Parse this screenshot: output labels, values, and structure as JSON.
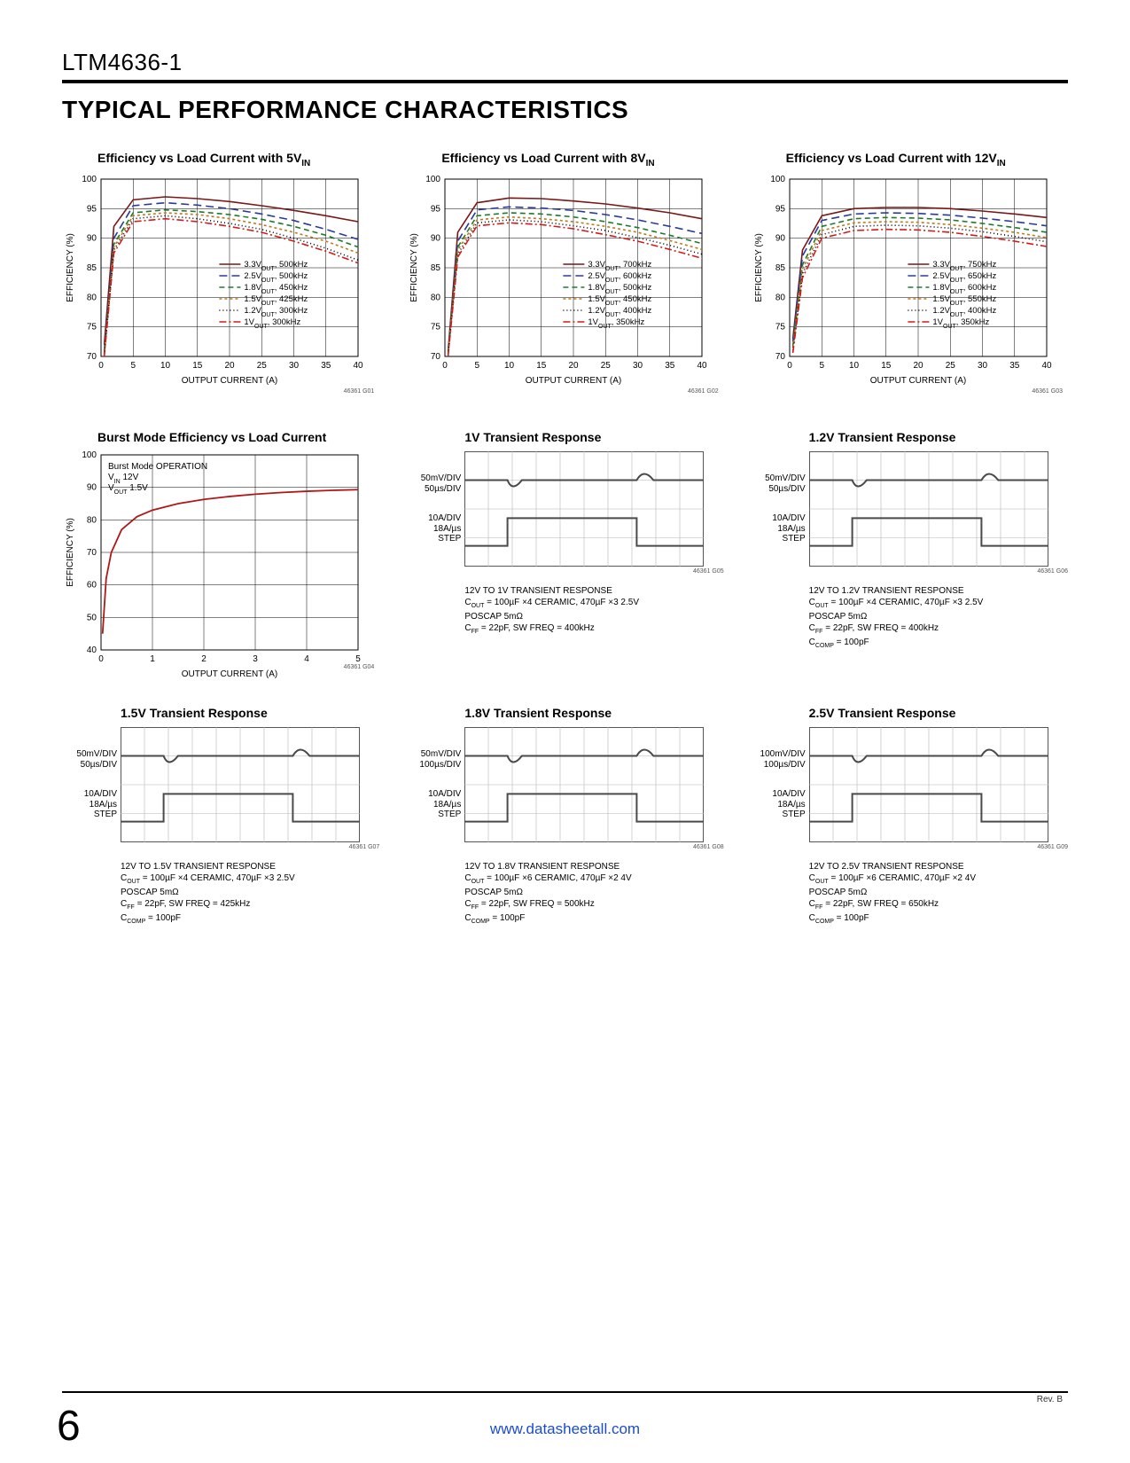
{
  "header": {
    "part_number": "LTM4636-1",
    "section_title": "TYPICAL PERFORMANCE CHARACTERISTICS"
  },
  "footer": {
    "page": "6",
    "rev": "Rev. B",
    "url": "www.datasheetall.com"
  },
  "eff_common": {
    "ylabel": "EFFICIENCY (%)",
    "xlabel": "OUTPUT CURRENT (A)",
    "xlim": [
      0,
      40
    ],
    "xticks": [
      0,
      5,
      10,
      15,
      20,
      25,
      30,
      35,
      40
    ],
    "ylim": [
      70,
      100
    ],
    "yticks": [
      70,
      75,
      80,
      85,
      90,
      95,
      100
    ],
    "grid_color": "#000",
    "colors": {
      "s33": "#7a1717",
      "s25": "#2a3a9a",
      "s18": "#1d7a2e",
      "s15": "#c07a1d",
      "s12": "#000000",
      "s10": "#d31b1b"
    },
    "dash": {
      "s33": "",
      "s25": "9 5",
      "s18": "6 4",
      "s15": "3 3",
      "s12": "1 3",
      "s10": "8 3 2 3"
    }
  },
  "chart1": {
    "title_pre": "Efficiency vs Load Current with 5V",
    "title_sub": "IN",
    "fig": "46361 G01",
    "legend": [
      {
        "k": "s33",
        "t": "3.3V_OUT, 500kHz"
      },
      {
        "k": "s25",
        "t": "2.5V_OUT, 500kHz"
      },
      {
        "k": "s18",
        "t": "1.8V_OUT, 450kHz"
      },
      {
        "k": "s15",
        "t": "1.5V_OUT, 425kHz"
      },
      {
        "k": "s12",
        "t": "1.2V_OUT, 300kHz"
      },
      {
        "k": "s10",
        "t": "1V_OUT, 300kHz"
      }
    ],
    "series": {
      "s33": [
        [
          0.5,
          72
        ],
        [
          2,
          92
        ],
        [
          5,
          96.5
        ],
        [
          10,
          97
        ],
        [
          15,
          96.7
        ],
        [
          20,
          96.2
        ],
        [
          25,
          95.5
        ],
        [
          30,
          94.7
        ],
        [
          35,
          93.8
        ],
        [
          40,
          92.8
        ]
      ],
      "s25": [
        [
          0.5,
          71
        ],
        [
          2,
          90
        ],
        [
          5,
          95.5
        ],
        [
          10,
          96
        ],
        [
          15,
          95.6
        ],
        [
          20,
          95
        ],
        [
          25,
          94.1
        ],
        [
          30,
          93
        ],
        [
          35,
          91.5
        ],
        [
          40,
          89.8
        ]
      ],
      "s18": [
        [
          0.5,
          70.5
        ],
        [
          2,
          89
        ],
        [
          5,
          94.3
        ],
        [
          10,
          94.8
        ],
        [
          15,
          94.5
        ],
        [
          20,
          94
        ],
        [
          25,
          93.2
        ],
        [
          30,
          92
        ],
        [
          35,
          90.5
        ],
        [
          40,
          88.5
        ]
      ],
      "s15": [
        [
          0.5,
          70.3
        ],
        [
          2,
          88.5
        ],
        [
          5,
          93.8
        ],
        [
          10,
          94.3
        ],
        [
          15,
          94
        ],
        [
          20,
          93.3
        ],
        [
          25,
          92.3
        ],
        [
          30,
          91
        ],
        [
          35,
          89.5
        ],
        [
          40,
          87.5
        ]
      ],
      "s12": [
        [
          0.5,
          70.2
        ],
        [
          2,
          88
        ],
        [
          5,
          93.3
        ],
        [
          10,
          93.8
        ],
        [
          15,
          93.3
        ],
        [
          20,
          92.5
        ],
        [
          25,
          91.5
        ],
        [
          30,
          90
        ],
        [
          35,
          88.3
        ],
        [
          40,
          86.3
        ]
      ],
      "s10": [
        [
          0.5,
          70
        ],
        [
          2,
          87.5
        ],
        [
          5,
          92.8
        ],
        [
          10,
          93.3
        ],
        [
          15,
          92.8
        ],
        [
          20,
          92
        ],
        [
          25,
          91
        ],
        [
          30,
          89.5
        ],
        [
          35,
          87.8
        ],
        [
          40,
          85.8
        ]
      ]
    }
  },
  "chart2": {
    "title_pre": "Efficiency vs Load Current with 8V",
    "title_sub": "IN",
    "fig": "46361 G02",
    "legend": [
      {
        "k": "s33",
        "t": "3.3V_OUT, 700kHz"
      },
      {
        "k": "s25",
        "t": "2.5V_OUT, 600kHz"
      },
      {
        "k": "s18",
        "t": "1.8V_OUT, 500kHz"
      },
      {
        "k": "s15",
        "t": "1.5V_OUT, 450kHz"
      },
      {
        "k": "s12",
        "t": "1.2V_OUT, 400kHz"
      },
      {
        "k": "s10",
        "t": "1V_OUT, 350kHz"
      }
    ],
    "series": {
      "s33": [
        [
          0.5,
          71
        ],
        [
          2,
          91
        ],
        [
          5,
          96
        ],
        [
          10,
          96.8
        ],
        [
          15,
          96.7
        ],
        [
          20,
          96.3
        ],
        [
          25,
          95.8
        ],
        [
          30,
          95.1
        ],
        [
          35,
          94.3
        ],
        [
          40,
          93.3
        ]
      ],
      "s25": [
        [
          0.5,
          70.8
        ],
        [
          2,
          89.5
        ],
        [
          5,
          94.8
        ],
        [
          10,
          95.3
        ],
        [
          15,
          95.1
        ],
        [
          20,
          94.7
        ],
        [
          25,
          94
        ],
        [
          30,
          93.1
        ],
        [
          35,
          92
        ],
        [
          40,
          90.8
        ]
      ],
      "s18": [
        [
          0.5,
          70.6
        ],
        [
          2,
          88.5
        ],
        [
          5,
          93.8
        ],
        [
          10,
          94.3
        ],
        [
          15,
          94.1
        ],
        [
          20,
          93.6
        ],
        [
          25,
          92.8
        ],
        [
          30,
          91.8
        ],
        [
          35,
          90.5
        ],
        [
          40,
          89.1
        ]
      ],
      "s15": [
        [
          0.5,
          70.4
        ],
        [
          2,
          88
        ],
        [
          5,
          93.1
        ],
        [
          10,
          93.6
        ],
        [
          15,
          93.3
        ],
        [
          20,
          92.8
        ],
        [
          25,
          92
        ],
        [
          30,
          91
        ],
        [
          35,
          89.6
        ],
        [
          40,
          88.1
        ]
      ],
      "s12": [
        [
          0.5,
          70.3
        ],
        [
          2,
          87.3
        ],
        [
          5,
          92.6
        ],
        [
          10,
          93.1
        ],
        [
          15,
          92.8
        ],
        [
          20,
          92.1
        ],
        [
          25,
          91.3
        ],
        [
          30,
          90.1
        ],
        [
          35,
          88.8
        ],
        [
          40,
          87.3
        ]
      ],
      "s10": [
        [
          0.5,
          70.1
        ],
        [
          2,
          86.8
        ],
        [
          5,
          92.1
        ],
        [
          10,
          92.6
        ],
        [
          15,
          92.3
        ],
        [
          20,
          91.6
        ],
        [
          25,
          90.6
        ],
        [
          30,
          89.5
        ],
        [
          35,
          88.1
        ],
        [
          40,
          86.6
        ]
      ]
    }
  },
  "chart3": {
    "title_pre": "Efficiency vs Load Current with 12V",
    "title_sub": "IN",
    "fig": "46361 G03",
    "legend": [
      {
        "k": "s33",
        "t": "3.3V_OUT, 750kHz"
      },
      {
        "k": "s25",
        "t": "2.5V_OUT, 650kHz"
      },
      {
        "k": "s18",
        "t": "1.8V_OUT, 600kHz"
      },
      {
        "k": "s15",
        "t": "1.5V_OUT, 550kHz"
      },
      {
        "k": "s12",
        "t": "1.2V_OUT, 400kHz"
      },
      {
        "k": "s10",
        "t": "1V_OUT, 350kHz"
      }
    ],
    "series": {
      "s33": [
        [
          0.5,
          73
        ],
        [
          2,
          88
        ],
        [
          5,
          93.8
        ],
        [
          10,
          95
        ],
        [
          15,
          95.2
        ],
        [
          20,
          95.2
        ],
        [
          25,
          95
        ],
        [
          30,
          94.6
        ],
        [
          35,
          94.1
        ],
        [
          40,
          93.5
        ]
      ],
      "s25": [
        [
          0.5,
          72.5
        ],
        [
          2,
          87
        ],
        [
          5,
          93
        ],
        [
          10,
          94.1
        ],
        [
          15,
          94.3
        ],
        [
          20,
          94.2
        ],
        [
          25,
          93.9
        ],
        [
          30,
          93.4
        ],
        [
          35,
          92.8
        ],
        [
          40,
          92.1
        ]
      ],
      "s18": [
        [
          0.5,
          71.8
        ],
        [
          2,
          85.5
        ],
        [
          5,
          92
        ],
        [
          10,
          93.3
        ],
        [
          15,
          93.5
        ],
        [
          20,
          93.4
        ],
        [
          25,
          93.1
        ],
        [
          30,
          92.5
        ],
        [
          35,
          91.8
        ],
        [
          40,
          91
        ]
      ],
      "s15": [
        [
          0.5,
          71.4
        ],
        [
          2,
          84.8
        ],
        [
          5,
          91.3
        ],
        [
          10,
          92.6
        ],
        [
          15,
          92.8
        ],
        [
          20,
          92.7
        ],
        [
          25,
          92.3
        ],
        [
          30,
          91.7
        ],
        [
          35,
          91
        ],
        [
          40,
          90.1
        ]
      ],
      "s12": [
        [
          0.5,
          71
        ],
        [
          2,
          84
        ],
        [
          5,
          90.6
        ],
        [
          10,
          92
        ],
        [
          15,
          92.2
        ],
        [
          20,
          92.1
        ],
        [
          25,
          91.7
        ],
        [
          30,
          91.1
        ],
        [
          35,
          90.3
        ],
        [
          40,
          89.4
        ]
      ],
      "s10": [
        [
          0.5,
          70.6
        ],
        [
          2,
          83.3
        ],
        [
          5,
          90
        ],
        [
          10,
          91.3
        ],
        [
          15,
          91.5
        ],
        [
          20,
          91.4
        ],
        [
          25,
          91
        ],
        [
          30,
          90.3
        ],
        [
          35,
          89.5
        ],
        [
          40,
          88.6
        ]
      ]
    }
  },
  "chart4": {
    "title": "Burst Mode Efficiency vs Load Current",
    "fig": "46361 G04",
    "ylabel": "EFFICIENCY (%)",
    "xlabel": "OUTPUT CURRENT (A)",
    "xlim": [
      0,
      5
    ],
    "xticks": [
      0,
      1,
      2,
      3,
      4,
      5
    ],
    "ylim": [
      40,
      100
    ],
    "yticks": [
      40,
      50,
      60,
      70,
      80,
      90,
      100
    ],
    "annot": [
      "Burst Mode OPERATION",
      "V_IN 12V",
      "V_OUT 1.5V"
    ],
    "color": "#b01818",
    "series": [
      [
        0.03,
        45
      ],
      [
        0.1,
        62
      ],
      [
        0.2,
        70
      ],
      [
        0.4,
        77
      ],
      [
        0.7,
        81
      ],
      [
        1,
        83
      ],
      [
        1.5,
        85
      ],
      [
        2,
        86.3
      ],
      [
        2.5,
        87.2
      ],
      [
        3,
        87.9
      ],
      [
        3.5,
        88.4
      ],
      [
        4,
        88.8
      ],
      [
        4.5,
        89.1
      ],
      [
        5,
        89.3
      ]
    ]
  },
  "scopes": {
    "grid_color": "#b5b5b5",
    "trace_color": "#4a4a4a",
    "s1": {
      "title": "1V Transient Response",
      "fig": "46361 G05",
      "left": [
        [
          "50mV/DIV",
          "50µs/DIV"
        ],
        [
          "10A/DIV",
          "18A/µs",
          "STEP"
        ]
      ],
      "caption": [
        "12V TO 1V TRANSIENT RESPONSE",
        "C_OUT = 100µF ×4 CERAMIC, 470µF ×3 2.5V",
        "POSCAP 5mΩ",
        "C_FF = 22pF, SW FREQ = 400kHz"
      ]
    },
    "s2": {
      "title": "1.2V Transient Response",
      "fig": "46361 G06",
      "left": [
        [
          "50mV/DIV",
          "50µs/DIV"
        ],
        [
          "10A/DIV",
          "18A/µs",
          "STEP"
        ]
      ],
      "caption": [
        "12V TO 1.2V TRANSIENT RESPONSE",
        "C_OUT = 100µF ×4 CERAMIC, 470µF ×3 2.5V",
        "POSCAP 5mΩ",
        "C_FF = 22pF, SW FREQ = 400kHz",
        "C_COMP = 100pF"
      ]
    },
    "s3": {
      "title": "1.5V Transient Response",
      "fig": "46361 G07",
      "left": [
        [
          "50mV/DIV",
          "50µs/DIV"
        ],
        [
          "10A/DIV",
          "18A/µs",
          "STEP"
        ]
      ],
      "caption": [
        "12V TO 1.5V TRANSIENT RESPONSE",
        "C_OUT = 100µF ×4 CERAMIC, 470µF ×3 2.5V",
        "POSCAP 5mΩ",
        "C_FF = 22pF, SW FREQ = 425kHz",
        "C_COMP = 100pF"
      ]
    },
    "s4": {
      "title": "1.8V Transient Response",
      "fig": "46361 G08",
      "left": [
        [
          "50mV/DIV",
          "100µs/DIV"
        ],
        [
          "10A/DIV",
          "18A/µs",
          "STEP"
        ]
      ],
      "caption": [
        "12V TO 1.8V TRANSIENT RESPONSE",
        "C_OUT = 100µF ×6 CERAMIC, 470µF ×2 4V",
        "POSCAP 5mΩ",
        "C_FF = 22pF, SW FREQ = 500kHz",
        "C_COMP = 100pF"
      ]
    },
    "s5": {
      "title": "2.5V Transient Response",
      "fig": "46361 G09",
      "left": [
        [
          "100mV/DIV",
          "100µs/DIV"
        ],
        [
          "10A/DIV",
          "18A/µs",
          "STEP"
        ]
      ],
      "caption": [
        "12V TO 2.5V TRANSIENT RESPONSE",
        "C_OUT = 100µF ×6 CERAMIC, 470µF ×2 4V",
        "POSCAP 5mΩ",
        "C_FF = 22pF, SW FREQ = 650kHz",
        "C_COMP = 100pF"
      ]
    }
  }
}
